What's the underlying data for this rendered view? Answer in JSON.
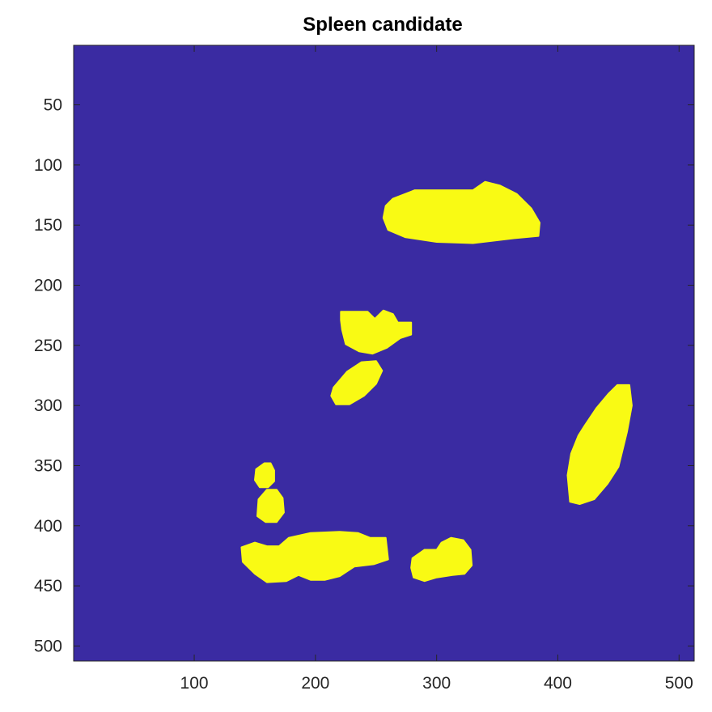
{
  "figure": {
    "title": "Spleen candidate",
    "background_color": "#3a2ba2",
    "mask_color": "#f9fa14",
    "axes": {
      "xlim": [
        0.5,
        512.5
      ],
      "ylim": [
        0.5,
        512.5
      ],
      "y_reversed": true,
      "xticks": [
        100,
        200,
        300,
        400,
        500
      ],
      "yticks": [
        50,
        100,
        150,
        200,
        250,
        300,
        350,
        400,
        450,
        500
      ]
    },
    "regions": [
      {
        "name": "region-top-right-large",
        "points": [
          [
            258,
            134
          ],
          [
            264,
            128
          ],
          [
            282,
            121
          ],
          [
            330,
            121
          ],
          [
            340,
            114
          ],
          [
            352,
            117
          ],
          [
            366,
            124
          ],
          [
            378,
            136
          ],
          [
            385,
            148
          ],
          [
            384,
            159
          ],
          [
            363,
            161
          ],
          [
            330,
            165
          ],
          [
            300,
            164
          ],
          [
            274,
            160
          ],
          [
            260,
            154
          ],
          [
            256,
            144
          ]
        ]
      },
      {
        "name": "region-mid-cluster",
        "points": [
          [
            221,
            222
          ],
          [
            243,
            222
          ],
          [
            249,
            228
          ],
          [
            256,
            221
          ],
          [
            264,
            224
          ],
          [
            268,
            231
          ],
          [
            279,
            231
          ],
          [
            279,
            241
          ],
          [
            270,
            244
          ],
          [
            259,
            252
          ],
          [
            247,
            257
          ],
          [
            236,
            255
          ],
          [
            225,
            249
          ],
          [
            222,
            237
          ],
          [
            221,
            229
          ]
        ]
      },
      {
        "name": "region-mid-diagonal",
        "points": [
          [
            215,
            285
          ],
          [
            226,
            272
          ],
          [
            238,
            264
          ],
          [
            250,
            263
          ],
          [
            255,
            271
          ],
          [
            250,
            282
          ],
          [
            240,
            292
          ],
          [
            228,
            299
          ],
          [
            217,
            299
          ],
          [
            213,
            292
          ]
        ]
      },
      {
        "name": "region-right-elongated",
        "points": [
          [
            422,
            317
          ],
          [
            432,
            302
          ],
          [
            442,
            290
          ],
          [
            449,
            283
          ],
          [
            459,
            283
          ],
          [
            461,
            300
          ],
          [
            457,
            322
          ],
          [
            450,
            351
          ],
          [
            441,
            365
          ],
          [
            430,
            378
          ],
          [
            418,
            382
          ],
          [
            410,
            380
          ],
          [
            408,
            358
          ],
          [
            411,
            340
          ],
          [
            417,
            325
          ]
        ]
      },
      {
        "name": "region-left-small-upper",
        "points": [
          [
            151,
            353
          ],
          [
            158,
            348
          ],
          [
            163,
            348
          ],
          [
            166,
            354
          ],
          [
            166,
            363
          ],
          [
            161,
            368
          ],
          [
            154,
            368
          ],
          [
            150,
            362
          ]
        ]
      },
      {
        "name": "region-left-small-lower",
        "points": [
          [
            153,
            378
          ],
          [
            160,
            370
          ],
          [
            168,
            370
          ],
          [
            173,
            377
          ],
          [
            174,
            389
          ],
          [
            168,
            397
          ],
          [
            159,
            397
          ],
          [
            152,
            392
          ]
        ]
      },
      {
        "name": "region-bottom-left-wide",
        "points": [
          [
            139,
            418
          ],
          [
            150,
            414
          ],
          [
            160,
            417
          ],
          [
            170,
            417
          ],
          [
            178,
            410
          ],
          [
            196,
            406
          ],
          [
            220,
            405
          ],
          [
            235,
            406
          ],
          [
            245,
            410
          ],
          [
            258,
            410
          ],
          [
            260,
            428
          ],
          [
            248,
            432
          ],
          [
            232,
            434
          ],
          [
            220,
            442
          ],
          [
            208,
            445
          ],
          [
            196,
            445
          ],
          [
            186,
            441
          ],
          [
            176,
            446
          ],
          [
            160,
            447
          ],
          [
            150,
            440
          ],
          [
            140,
            430
          ]
        ]
      },
      {
        "name": "region-bottom-center",
        "points": [
          [
            280,
            427
          ],
          [
            290,
            420
          ],
          [
            300,
            420
          ],
          [
            304,
            414
          ],
          [
            312,
            410
          ],
          [
            322,
            412
          ],
          [
            328,
            420
          ],
          [
            329,
            433
          ],
          [
            323,
            440
          ],
          [
            313,
            441
          ],
          [
            300,
            443
          ],
          [
            290,
            446
          ],
          [
            281,
            443
          ],
          [
            279,
            435
          ]
        ]
      }
    ]
  }
}
